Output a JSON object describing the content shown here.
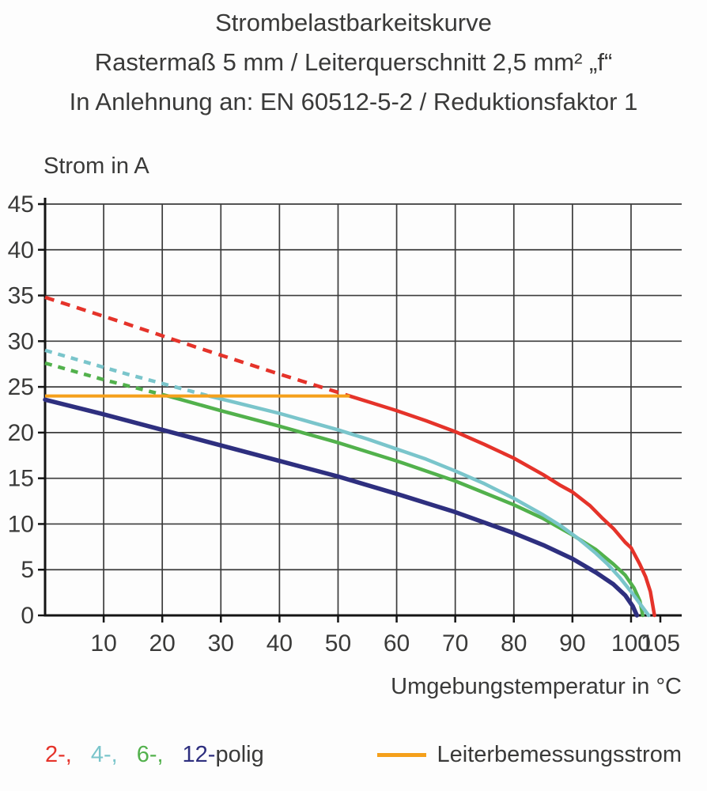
{
  "title": {
    "line1": "Strombelastbarkeitskurve",
    "line2": "Rastermaß 5 mm / Leiterquerschnitt 2,5 mm² „f“",
    "line3": "In Anlehnung an: EN 60512-5-2 / Reduktionsfaktor 1"
  },
  "chart_data": {
    "type": "line",
    "title": "Strombelastbarkeitskurve",
    "subtitle": "Rastermaß 5 mm / Leiterquerschnitt 2,5 mm² „f“",
    "note": "In Anlehnung an: EN 60512-5-2 / Reduktionsfaktor 1",
    "ylabel": "Strom in A",
    "xlabel": "Umgebungstemperatur in °C",
    "xlim": [
      0,
      105
    ],
    "ylim": [
      0,
      45
    ],
    "xticks": [
      10,
      20,
      30,
      40,
      50,
      60,
      70,
      80,
      90,
      100,
      105
    ],
    "yticks": [
      0,
      5,
      10,
      15,
      20,
      25,
      30,
      35,
      40,
      45
    ],
    "xgrid": [
      10,
      20,
      30,
      40,
      50,
      60,
      70,
      80,
      90,
      100
    ],
    "ygrid": [
      5,
      10,
      15,
      20,
      25,
      30,
      35,
      40,
      45
    ],
    "grid": true,
    "legend_position": "bottom",
    "rated_current": {
      "label": "Leiterbemessungsstrom",
      "value": 24,
      "x_start": 0,
      "x_end": 52,
      "color": "#f5a01b",
      "width": 4
    },
    "series": [
      {
        "name": "2-polig",
        "color": "#e5332a",
        "width": 4.5,
        "dash": "12 9",
        "dashed": [
          [
            0,
            34.8
          ],
          [
            13,
            32.1
          ],
          [
            26,
            29.3
          ],
          [
            39,
            26.6
          ],
          [
            52,
            24
          ]
        ],
        "solid": [
          [
            52,
            24
          ],
          [
            56,
            23.2
          ],
          [
            60,
            22.4
          ],
          [
            65,
            21.3
          ],
          [
            70,
            20.1
          ],
          [
            75,
            18.7
          ],
          [
            80,
            17.2
          ],
          [
            85,
            15.4
          ],
          [
            88,
            14.2
          ],
          [
            90,
            13.5
          ],
          [
            93,
            12.0
          ],
          [
            95,
            10.7
          ],
          [
            97,
            9.5
          ],
          [
            99,
            8.0
          ],
          [
            100,
            7.4
          ],
          [
            101.5,
            5.6
          ],
          [
            102.5,
            4.2
          ],
          [
            103.3,
            2.6
          ],
          [
            104,
            0
          ]
        ]
      },
      {
        "name": "4-polig",
        "color": "#7ac5cb",
        "width": 4.5,
        "dash": "9 8",
        "dashed": [
          [
            0,
            29
          ],
          [
            14,
            26.4
          ],
          [
            28,
            24
          ]
        ],
        "solid": [
          [
            28,
            24
          ],
          [
            35,
            22.9
          ],
          [
            40,
            22.1
          ],
          [
            45,
            21.2
          ],
          [
            50,
            20.3
          ],
          [
            55,
            19.3
          ],
          [
            60,
            18.2
          ],
          [
            65,
            17.1
          ],
          [
            70,
            15.8
          ],
          [
            75,
            14.4
          ],
          [
            80,
            12.8
          ],
          [
            85,
            11.0
          ],
          [
            88,
            9.8
          ],
          [
            91,
            8.4
          ],
          [
            94,
            6.8
          ],
          [
            96,
            5.6
          ],
          [
            98,
            4.2
          ],
          [
            100,
            2.6
          ],
          [
            101.5,
            1.3
          ],
          [
            103,
            0
          ]
        ]
      },
      {
        "name": "6-polig",
        "color": "#52b14c",
        "width": 4.5,
        "dash": "9 8",
        "dashed": [
          [
            0,
            27.6
          ],
          [
            10.5,
            25.7
          ],
          [
            21,
            24
          ]
        ],
        "solid": [
          [
            21,
            24
          ],
          [
            30,
            22.4
          ],
          [
            40,
            20.7
          ],
          [
            50,
            18.9
          ],
          [
            60,
            16.9
          ],
          [
            70,
            14.7
          ],
          [
            80,
            12.1
          ],
          [
            85,
            10.6
          ],
          [
            90,
            8.8
          ],
          [
            94,
            7.2
          ],
          [
            97,
            5.6
          ],
          [
            99,
            4.4
          ],
          [
            100.5,
            3.0
          ],
          [
            101.5,
            1.6
          ],
          [
            102,
            0
          ]
        ]
      },
      {
        "name": "12-polig",
        "color": "#2e2f7f",
        "width": 5.5,
        "solid": [
          [
            0,
            23.6
          ],
          [
            10,
            22.0
          ],
          [
            20,
            20.3
          ],
          [
            30,
            18.6
          ],
          [
            40,
            16.9
          ],
          [
            50,
            15.2
          ],
          [
            60,
            13.3
          ],
          [
            70,
            11.3
          ],
          [
            80,
            9.0
          ],
          [
            85,
            7.7
          ],
          [
            90,
            6.2
          ],
          [
            94,
            4.7
          ],
          [
            97,
            3.4
          ],
          [
            99,
            2.2
          ],
          [
            100.3,
            1.0
          ],
          [
            101,
            0
          ]
        ]
      }
    ]
  },
  "legend": {
    "poles": [
      {
        "label": "2-,",
        "color": "#e5332a"
      },
      {
        "label": "4-,",
        "color": "#7ac5cb"
      },
      {
        "label": "6-,",
        "color": "#52b14c"
      },
      {
        "label": "12-",
        "color": "#2e2f7f"
      }
    ],
    "poles_suffix": "polig",
    "rated_label": "Leiterbemessungsstrom"
  },
  "colors": {
    "axis": "#141414",
    "grid": "#3c3c3c",
    "text": "#3a3a39"
  }
}
